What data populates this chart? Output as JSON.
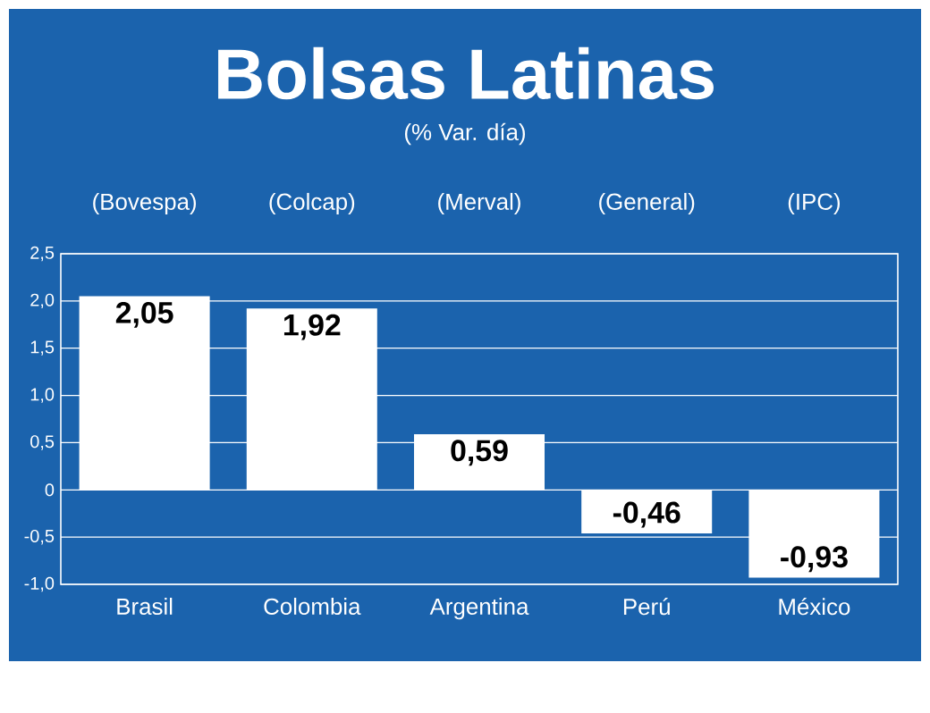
{
  "chart_data": {
    "type": "bar",
    "title": "Bolsas Latinas",
    "subtitle": "(% Var. día)",
    "categories": [
      "Brasil",
      "Colombia",
      "Argentina",
      "Perú",
      "México"
    ],
    "values": [
      2.05,
      1.92,
      0.59,
      -0.46,
      -0.93
    ],
    "value_labels": [
      "2,05",
      "1,92",
      "0,59",
      "-0,46",
      "-0,93"
    ],
    "color": "#ffffff",
    "ylim": [
      -1.0,
      2.5
    ],
    "yticks": [
      {
        "value": -1.0,
        "label": "-1,0"
      },
      {
        "value": -0.5,
        "label": "-0,5"
      },
      0,
      {
        "value": 0.5,
        "label": "0,5"
      },
      {
        "value": 1.0,
        "label": "1,0"
      },
      {
        "value": 1.5,
        "label": "1,5"
      },
      {
        "value": 2.0,
        "label": "2,0"
      },
      {
        "value": 2.5,
        "label": "2,5"
      }
    ],
    "grid": "y",
    "annotations": [
      "(Bovespa)",
      "(Colcap)",
      "(Merval)",
      "(General)",
      "(IPC)"
    ]
  }
}
